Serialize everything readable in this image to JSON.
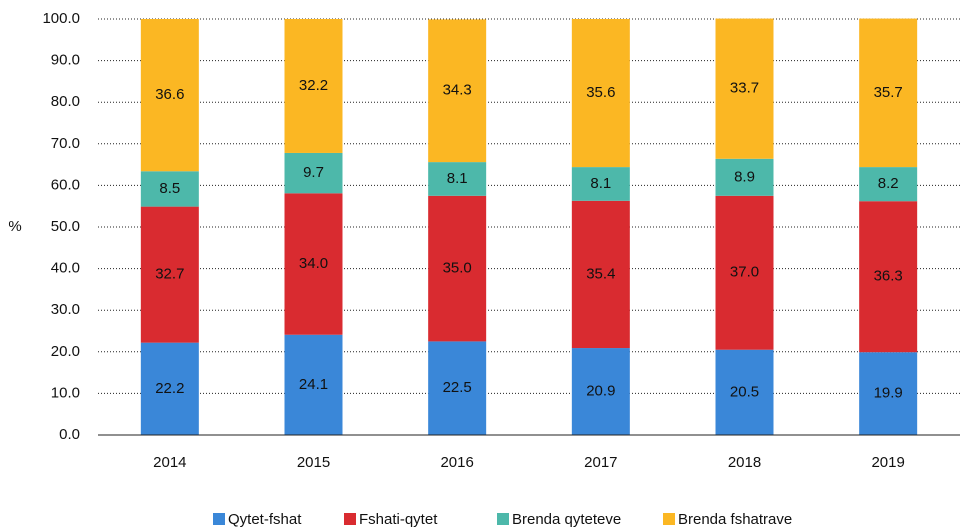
{
  "chart_data": {
    "type": "stacked_bar",
    "y_label": "%",
    "categories": [
      "2014",
      "2015",
      "2016",
      "2017",
      "2018",
      "2019"
    ],
    "series": [
      {
        "name": "Qytet-fshat",
        "color": "#3a87d8",
        "values": [
          22.2,
          24.1,
          22.5,
          20.9,
          20.5,
          19.9
        ],
        "value_labels": [
          "22.2",
          "24.1",
          "22.5",
          "20.9",
          "20.5",
          "19.9"
        ]
      },
      {
        "name": "Fshati-qytet",
        "color": "#d92b30",
        "values": [
          32.7,
          34.0,
          35.0,
          35.4,
          37.0,
          36.3
        ],
        "value_labels": [
          "32.7",
          "34.0",
          "35.0",
          "35.4",
          "37.0",
          "36.3"
        ]
      },
      {
        "name": "Brenda qyteteve",
        "color": "#4db8aa",
        "values": [
          8.5,
          9.7,
          8.1,
          8.1,
          8.9,
          8.2
        ],
        "value_labels": [
          "8.5",
          "9.7",
          "8.1",
          "8.1",
          "8.9",
          "8.2"
        ]
      },
      {
        "name": "Brenda fshatrave",
        "color": "#fbb723",
        "values": [
          36.6,
          32.2,
          34.3,
          35.6,
          33.7,
          35.7
        ],
        "value_labels": [
          "36.6",
          "32.2",
          "34.3",
          "35.6",
          "33.7",
          "35.7"
        ]
      }
    ],
    "ylim": [
      0,
      100
    ],
    "yticks": [
      {
        "value": 0,
        "label": "0.0"
      },
      {
        "value": 10,
        "label": "10.0"
      },
      {
        "value": 20,
        "label": "20.0"
      },
      {
        "value": 30,
        "label": "30.0"
      },
      {
        "value": 40,
        "label": "40.0"
      },
      {
        "value": 50,
        "label": "50.0"
      },
      {
        "value": 60,
        "label": "60.0"
      },
      {
        "value": 70,
        "label": "70.0"
      },
      {
        "value": 80,
        "label": "80.0"
      },
      {
        "value": 90,
        "label": "90.0"
      },
      {
        "value": 100,
        "label": "100.0"
      }
    ],
    "grid": true,
    "legend": "bottom"
  }
}
